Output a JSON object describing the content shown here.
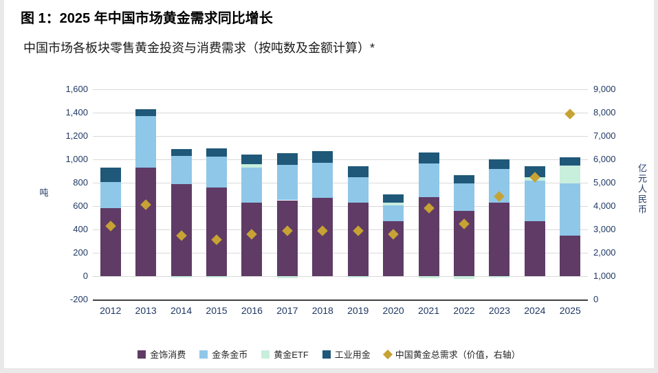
{
  "chart_data": {
    "type": "bar",
    "title": "图 1：2025 年中国市场黄金需求同比增长",
    "subtitle": "中国市场各板块零售黄金投资与消费需求（按吨数及金额计算）*",
    "left_axis": {
      "label": "吨",
      "min": -200,
      "max": 1600,
      "ticks": [
        "1,600",
        "1,400",
        "1,200",
        "1,000",
        "800",
        "600",
        "400",
        "200",
        "0",
        "-200"
      ]
    },
    "right_axis": {
      "label": "亿元人民币",
      "min": 0,
      "max": 9000,
      "ticks": [
        "9,000",
        "8,000",
        "7,000",
        "6,000",
        "5,000",
        "4,000",
        "3,000",
        "2,000",
        "1,000",
        "0"
      ]
    },
    "categories": [
      "2012",
      "2013",
      "2014",
      "2015",
      "2016",
      "2017",
      "2018",
      "2019",
      "2020",
      "2021",
      "2022",
      "2023",
      "2024",
      "2025"
    ],
    "series": [
      {
        "name": "金饰消费",
        "color": "#5f3b66",
        "values": [
          580,
          930,
          790,
          760,
          630,
          650,
          670,
          630,
          470,
          675,
          560,
          630,
          470,
          345
        ]
      },
      {
        "name": "金条金币",
        "color": "#8fc7e8",
        "values": [
          225,
          440,
          240,
          265,
          300,
          305,
          300,
          215,
          135,
          290,
          235,
          285,
          350,
          450
        ]
      },
      {
        "name": "黄金ETF",
        "color": "#c8eedc",
        "values": [
          0,
          0,
          -10,
          -10,
          30,
          -15,
          0,
          -10,
          25,
          -15,
          -25,
          -10,
          25,
          150
        ]
      },
      {
        "name": "工业用金",
        "color": "#1f5878",
        "values": [
          125,
          60,
          60,
          70,
          80,
          100,
          100,
          95,
          70,
          95,
          70,
          85,
          95,
          70
        ]
      }
    ],
    "scatter": {
      "name": "中国黄金总需求（价值，右轴）",
      "color": "#c7a234",
      "axis": "right",
      "values": [
        3150,
        4050,
        2750,
        2550,
        2800,
        2950,
        2950,
        2950,
        2800,
        3900,
        3250,
        4400,
        5250,
        7950
      ]
    },
    "legend_position": "bottom",
    "grid": true
  }
}
